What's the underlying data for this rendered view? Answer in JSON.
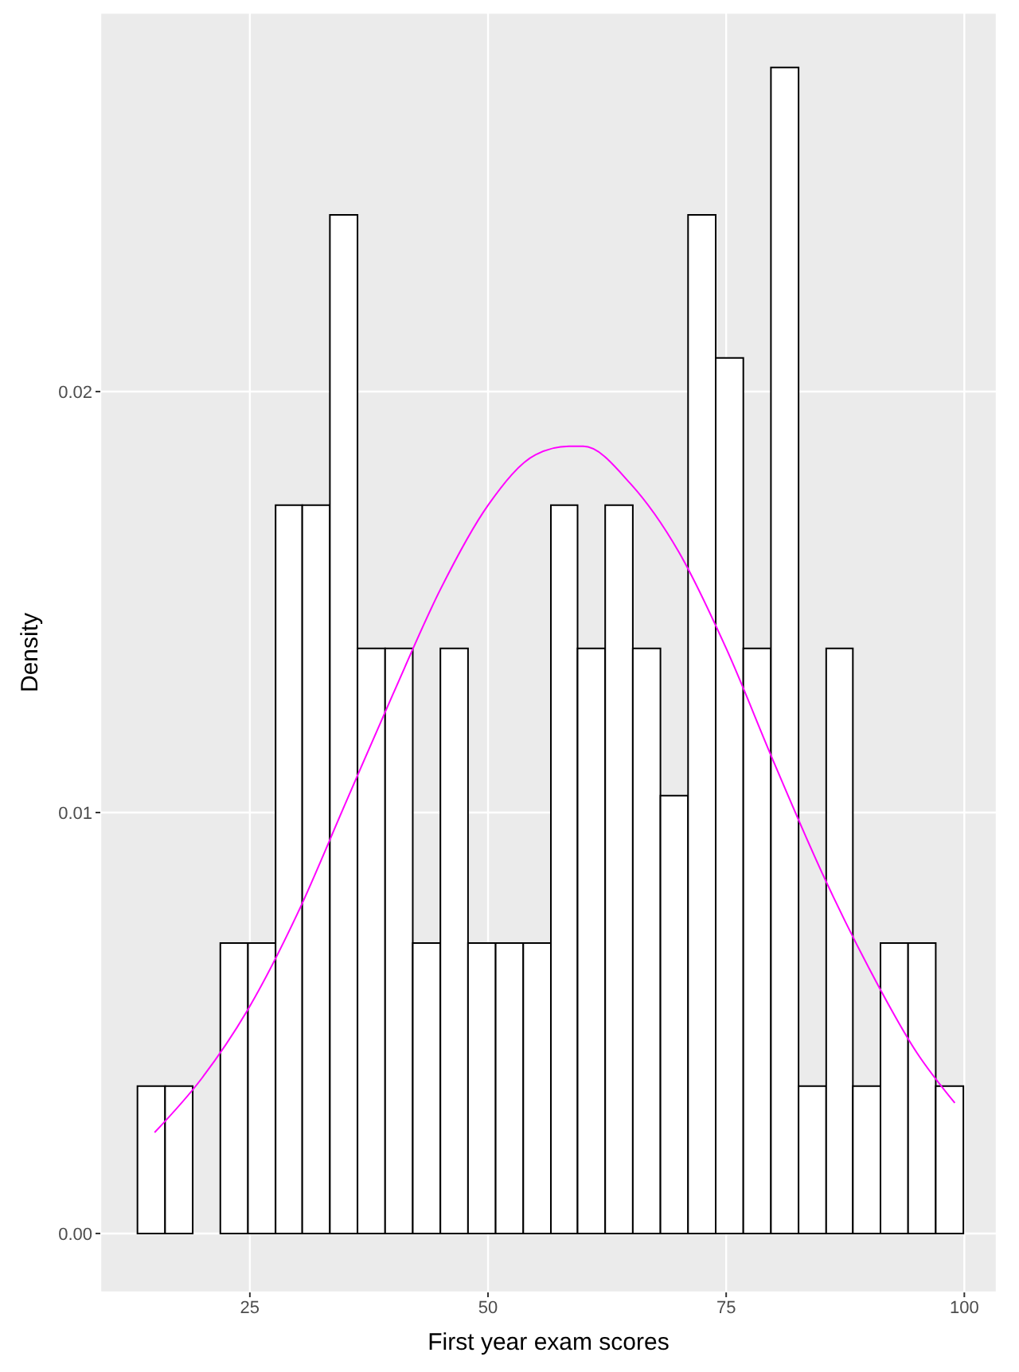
{
  "chart_data": {
    "type": "histogram",
    "xlabel": "First year exam scores",
    "ylabel": "Density",
    "xlim": [
      9.3,
      103.4
    ],
    "xticks": [
      25,
      50,
      75,
      100
    ],
    "ylim": [
      -0.0014,
      0.029
    ],
    "yticks": [
      {
        "value": 0,
        "label": "0.00"
      },
      {
        "value": 0.01,
        "label": "0.01"
      },
      {
        "value": 0.02,
        "label": "0.02"
      }
    ],
    "grid": true,
    "series": [
      {
        "color": "#ffffff",
        "bins": [
          13.2,
          16.1,
          19.0,
          21.9,
          24.8,
          27.7,
          30.5,
          33.4,
          36.3,
          39.2,
          42.1,
          45.0,
          47.9,
          50.8,
          53.7,
          56.6,
          59.4,
          62.3,
          65.2,
          68.1,
          71.0,
          73.9,
          76.8,
          79.7,
          82.6,
          85.5,
          88.3,
          91.2,
          94.1,
          97.0,
          99.9
        ],
        "values": [
          0.0035,
          0.0035,
          0,
          0.0069,
          0.0069,
          0.0173,
          0.0173,
          0.0242,
          0.0139,
          0.0139,
          0.0069,
          0.0139,
          0.0069,
          0.0069,
          0.0069,
          0.0173,
          0.0139,
          0.0173,
          0.0139,
          0.0104,
          0.0242,
          0.0208,
          0.0139,
          0.0277,
          0.0035,
          0.0139,
          0.0035,
          0.0069,
          0.0069,
          0.0035
        ]
      },
      {
        "type": "line",
        "color": "#ff00ff",
        "x": [
          15,
          20,
          25,
          30,
          35,
          40,
          45,
          50,
          55,
          58.5,
          60,
          65,
          70,
          75,
          80,
          85,
          90,
          95,
          99
        ],
        "values": [
          0.0024,
          0.0037,
          0.0054,
          0.0076,
          0.0102,
          0.0128,
          0.0153,
          0.0173,
          0.0185,
          0.0187,
          0.0187,
          0.0178,
          0.0162,
          0.0139,
          0.0112,
          0.0086,
          0.0063,
          0.0043,
          0.0031
        ]
      }
    ]
  }
}
